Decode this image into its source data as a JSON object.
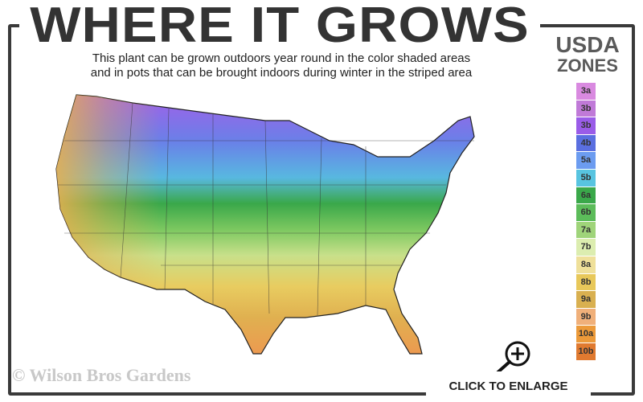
{
  "header": {
    "title": "WHERE IT GROWS",
    "subtitle_line1": "This plant can be grown outdoors year round in the color shaded areas",
    "subtitle_line2": "and in pots that can be brought indoors during winter in the striped area"
  },
  "legend": {
    "title_line1": "USDA",
    "title_line2": "ZONES",
    "zones": [
      {
        "label": "3a",
        "color": "#d98ae0"
      },
      {
        "label": "3b",
        "color": "#c07ad8"
      },
      {
        "label": "3b",
        "color": "#9a5ce8"
      },
      {
        "label": "4b",
        "color": "#5a6fe0"
      },
      {
        "label": "5a",
        "color": "#6c9cf0"
      },
      {
        "label": "5b",
        "color": "#58c4e0"
      },
      {
        "label": "6a",
        "color": "#3aa84a"
      },
      {
        "label": "6b",
        "color": "#5cbc5a"
      },
      {
        "label": "7a",
        "color": "#9fd47a"
      },
      {
        "label": "7b",
        "color": "#dcedb0"
      },
      {
        "label": "8a",
        "color": "#efe09a"
      },
      {
        "label": "8b",
        "color": "#e8c85a"
      },
      {
        "label": "9a",
        "color": "#d9b050"
      },
      {
        "label": "9b",
        "color": "#f0b07a"
      },
      {
        "label": "10a",
        "color": "#ec9a3a"
      },
      {
        "label": "10b",
        "color": "#e07a30"
      }
    ]
  },
  "footer": {
    "copyright": "© Wilson Bros Gardens",
    "enlarge_label": "CLICK TO ENLARGE",
    "enlarge_icon": "zoom-in-magnifier-icon"
  }
}
